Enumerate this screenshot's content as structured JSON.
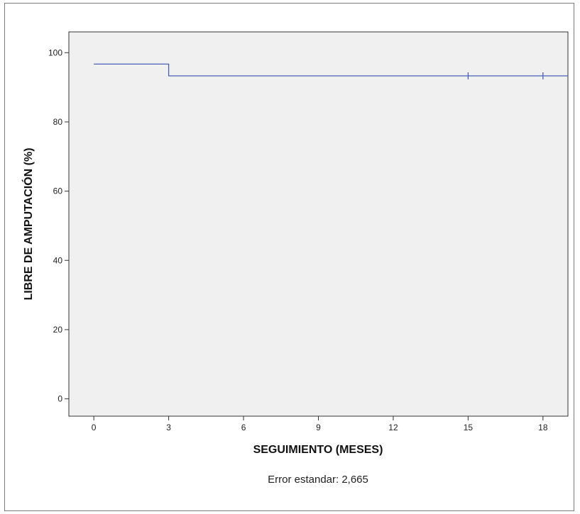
{
  "chart_data": {
    "type": "line",
    "title": "",
    "xlabel": "SEGUIMIENTO (MESES)",
    "ylabel": "LIBRE DE AMPUTACIÓN (%)",
    "xlim": [
      -1,
      19
    ],
    "ylim": [
      -5,
      106
    ],
    "x_ticks": [
      0,
      3,
      6,
      9,
      12,
      15,
      18
    ],
    "y_ticks": [
      0,
      20,
      40,
      60,
      80,
      100
    ],
    "grid": false,
    "plot_background": "#f0f0f0",
    "series": [
      {
        "color": "#4a5fb5",
        "step": true,
        "x": [
          0,
          3,
          3,
          19
        ],
        "y": [
          96.7,
          96.7,
          93.3,
          93.3
        ],
        "censored": [
          {
            "x": 15,
            "y": 93.3
          },
          {
            "x": 18,
            "y": 93.3
          }
        ]
      }
    ],
    "annotation": "Error estandar: 2,665"
  }
}
